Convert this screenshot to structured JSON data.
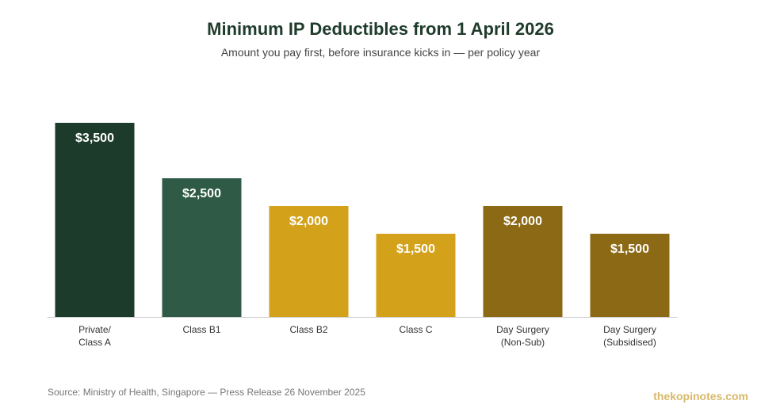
{
  "chart_data": {
    "type": "bar",
    "title": "Minimum IP Deductibles from 1 April 2026",
    "subtitle": "Amount you pay first, before insurance kicks in — per policy year",
    "categories": [
      [
        "Private/",
        "Class A"
      ],
      [
        "Class B1"
      ],
      [
        "Class B2"
      ],
      [
        "Class C"
      ],
      [
        "Day Surgery",
        "(Non-Sub)"
      ],
      [
        "Day Surgery",
        "(Subsidised)"
      ]
    ],
    "values": [
      3500,
      2500,
      2000,
      1500,
      2000,
      1500
    ],
    "data_labels": [
      "$3,500",
      "$2,500",
      "$2,000",
      "$1,500",
      "$2,000",
      "$1,500"
    ],
    "colors": [
      "#1c3b2a",
      "#2f5a45",
      "#d4a21a",
      "#d4a21a",
      "#8c6914",
      "#8c6914"
    ],
    "label_color": "#ffffff",
    "ylim": [
      0,
      3500
    ],
    "grid": false,
    "legend": "none"
  },
  "footer": {
    "source": "Source: Ministry of Health, Singapore — Press Release 26 November 2025",
    "brand": "thekopinotes.com"
  }
}
